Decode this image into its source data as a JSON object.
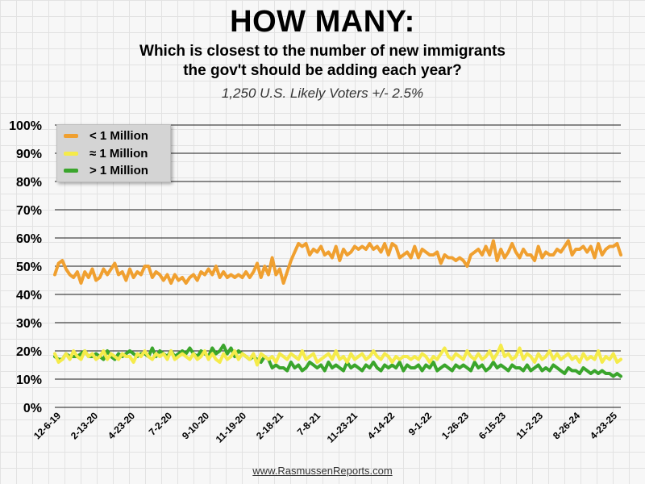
{
  "header": {
    "title": "HOW MANY:",
    "subtitle_line1": "Which is closest to the number of new immigrants",
    "subtitle_line2": "the gov't should be adding each year?",
    "sample": "1,250 U.S. Likely Voters +/- 2.5%"
  },
  "footer": {
    "source": "www.RasmussenReports.com"
  },
  "colors": {
    "less": "#f0a030",
    "about": "#f5eb4a",
    "more": "#3aa52c",
    "gridline": "#1a1a1a"
  },
  "chart_data": {
    "type": "line",
    "title": "HOW MANY:",
    "ylim": [
      0,
      100
    ],
    "y_ticks": [
      "0%",
      "10%",
      "20%",
      "30%",
      "40%",
      "50%",
      "60%",
      "70%",
      "80%",
      "90%",
      "100%"
    ],
    "x_tick_labels": [
      "12-6-19",
      "2-13-20",
      "4-23-20",
      "7-2-20",
      "9-10-20",
      "11-19-20",
      "2-18-21",
      "7-8-21",
      "11-23-21",
      "4-14-22",
      "9-1-22",
      "1-26-23",
      "6-15-23",
      "11-2-23",
      "8-26-24",
      "4-23-25"
    ],
    "legend_position": "top-left",
    "grid": true,
    "series": [
      {
        "name": "< 1 Million",
        "values": [
          47,
          51,
          52,
          49,
          47,
          46,
          48,
          44,
          48,
          46,
          49,
          45,
          46,
          49,
          47,
          49,
          51,
          47,
          48,
          45,
          49,
          46,
          48,
          47,
          50,
          50,
          46,
          48,
          47,
          45,
          47,
          44,
          47,
          45,
          46,
          44,
          46,
          47,
          45,
          48,
          47,
          49,
          47,
          50,
          46,
          48,
          46,
          47,
          46,
          47,
          46,
          48,
          46,
          48,
          51,
          46,
          50,
          47,
          53,
          47,
          49,
          44,
          48,
          52,
          55,
          58,
          57,
          58,
          54,
          56,
          55,
          57,
          54,
          55,
          53,
          57,
          52,
          56,
          54,
          55,
          57,
          56,
          57,
          56,
          58,
          56,
          57,
          55,
          58,
          54,
          58,
          57,
          53,
          54,
          55,
          53,
          57,
          53,
          56,
          55,
          54,
          54,
          55,
          51,
          54,
          53,
          53,
          52,
          53,
          52,
          50,
          54,
          55,
          56,
          54,
          57,
          54,
          59,
          52,
          56,
          53,
          55,
          58,
          55,
          53,
          56,
          54,
          54,
          52,
          57,
          53,
          55,
          54,
          54,
          56,
          55,
          57,
          59,
          54,
          56,
          56,
          57,
          55,
          57,
          53,
          58,
          54,
          56,
          57,
          57,
          58,
          54
        ]
      },
      {
        "name": "≈ 1 Million",
        "values": [
          19,
          16,
          17,
          19,
          17,
          20,
          18,
          17,
          20,
          18,
          19,
          17,
          18,
          20,
          17,
          19,
          18,
          17,
          19,
          18,
          18,
          16,
          19,
          18,
          20,
          18,
          17,
          19,
          18,
          19,
          17,
          20,
          17,
          18,
          19,
          18,
          17,
          19,
          17,
          18,
          20,
          17,
          19,
          17,
          16,
          19,
          17,
          18,
          20,
          17,
          19,
          18,
          17,
          19,
          15,
          19,
          18,
          17,
          18,
          16,
          19,
          18,
          17,
          19,
          18,
          17,
          20,
          17,
          18,
          19,
          16,
          17,
          18,
          19,
          17,
          20,
          17,
          18,
          16,
          19,
          17,
          18,
          19,
          17,
          18,
          20,
          18,
          17,
          19,
          18,
          16,
          18,
          17,
          18,
          18,
          17,
          18,
          17,
          19,
          18,
          16,
          18,
          17,
          19,
          21,
          18,
          17,
          19,
          18,
          17,
          20,
          18,
          17,
          19,
          17,
          18,
          20,
          17,
          19,
          22,
          18,
          19,
          17,
          18,
          21,
          17,
          19,
          18,
          16,
          19,
          17,
          18,
          20,
          17,
          19,
          17,
          18,
          19,
          17,
          18,
          16,
          19,
          17,
          18,
          17,
          20,
          16,
          18,
          17,
          19,
          16,
          17
        ]
      },
      {
        "name": "> 1 Million",
        "values": [
          18,
          17,
          17,
          19,
          18,
          18,
          18,
          19,
          20,
          18,
          18,
          19,
          18,
          17,
          20,
          18,
          17,
          19,
          18,
          19,
          20,
          19,
          18,
          19,
          19,
          18,
          21,
          18,
          20,
          19,
          18,
          20,
          18,
          19,
          20,
          19,
          21,
          19,
          18,
          20,
          19,
          18,
          21,
          19,
          20,
          22,
          19,
          21,
          18,
          20,
          19,
          18,
          17,
          18,
          17,
          16,
          18,
          17,
          14,
          15,
          14,
          14,
          13,
          16,
          14,
          15,
          13,
          14,
          16,
          15,
          14,
          15,
          13,
          16,
          14,
          15,
          14,
          13,
          16,
          14,
          15,
          14,
          13,
          15,
          14,
          16,
          14,
          13,
          15,
          14,
          15,
          14,
          16,
          13,
          15,
          14,
          14,
          15,
          13,
          15,
          14,
          16,
          13,
          14,
          15,
          14,
          13,
          15,
          14,
          15,
          14,
          13,
          16,
          14,
          15,
          13,
          14,
          16,
          14,
          15,
          14,
          13,
          15,
          14,
          14,
          13,
          15,
          13,
          14,
          15,
          13,
          14,
          13,
          15,
          14,
          13,
          12,
          14,
          13,
          13,
          12,
          14,
          13,
          12,
          13,
          12,
          13,
          12,
          12,
          11,
          12,
          11
        ]
      }
    ]
  }
}
